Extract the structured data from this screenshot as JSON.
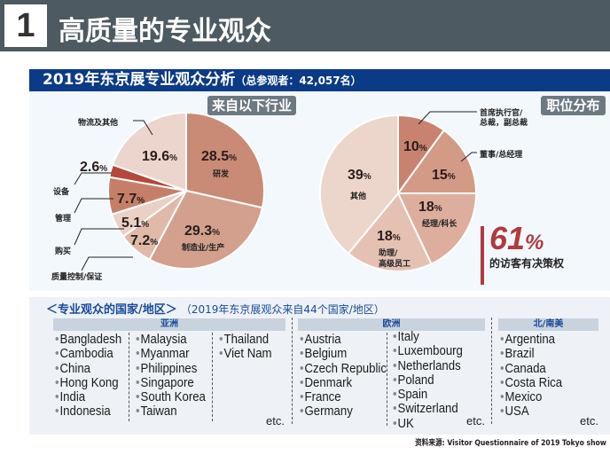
{
  "header": {
    "number": "1",
    "title": "高质量的专业观众"
  },
  "analysis": {
    "title": "2019年东京展专业观众分析",
    "subtitle": "（总参观者：42,057名）"
  },
  "industry_tag": "来自以下行业",
  "position_tag": "职位分布",
  "decision": {
    "value": "61",
    "unit": "%",
    "label": "的访客有决策权",
    "bar_color": "#b03a3e"
  },
  "chart_data": [
    {
      "type": "pie",
      "title": "来自以下行业",
      "start": "top",
      "direction": "clockwise",
      "slices": [
        {
          "label": "研发",
          "value": 28.5,
          "color": "#c98a76"
        },
        {
          "label": "制造业/生产",
          "value": 29.3,
          "color": "#d3a08d"
        },
        {
          "label": "质量控制/保证",
          "value": 7.2,
          "color": "#e0b9a9"
        },
        {
          "label": "购买",
          "value": 5.1,
          "color": "#ebd0c5"
        },
        {
          "label": "管理",
          "value": 7.7,
          "color": "#c57f69"
        },
        {
          "label": "设备",
          "value": 2.6,
          "color": "#b5473b"
        },
        {
          "label": "物流及其他",
          "value": 19.6,
          "color": "#ecd5cc"
        }
      ]
    },
    {
      "type": "pie",
      "title": "职位分布",
      "start": "top",
      "direction": "clockwise",
      "slices": [
        {
          "label": "首席执行官/总裁，副总裁",
          "value": 10,
          "color": "#c8826f"
        },
        {
          "label": "董事/总经理",
          "value": 15,
          "color": "#d39a86"
        },
        {
          "label": "经理/科长",
          "value": 18,
          "color": "#ddae9d"
        },
        {
          "label": "助理/高级员工",
          "value": 18,
          "color": "#e5c1b3"
        },
        {
          "label": "其他",
          "value": 39,
          "color": "#ecd5cb"
        }
      ]
    }
  ],
  "labels": {
    "pct": "%",
    "p1": [
      "28.5",
      "29.3",
      "7.2",
      "5.1",
      "7.7",
      "2.6",
      "19.6"
    ],
    "p2": [
      "10",
      "15",
      "18",
      "18",
      "39"
    ],
    "ceo1": "首席执行官/",
    "ceo2": "总裁，副总裁",
    "asst1": "助理/",
    "asst2": "高级员工"
  },
  "countries": {
    "title": "＜专业观众的国家/地区＞",
    "note": "（2019年东京展观众来自44个国家/地区）",
    "regions": [
      {
        "name": "亚洲",
        "columns": [
          [
            "Bangladesh",
            "Cambodia",
            "China",
            "Hong Kong",
            "India",
            "Indonesia"
          ],
          [
            "Malaysia",
            "Myanmar",
            "Philippines",
            "Singapore",
            "South Korea",
            "Taiwan"
          ],
          [
            "Thailand",
            "Viet Nam"
          ]
        ]
      },
      {
        "name": "欧洲",
        "columns": [
          [
            "Austria",
            "Belgium",
            "Czech Republic",
            "Denmark",
            "France",
            "Germany"
          ],
          [
            "Italy",
            "Luxembourg",
            "Netherlands",
            "Poland",
            "Spain",
            "Switzerland",
            "UK"
          ]
        ]
      },
      {
        "name": "北/南美",
        "columns": [
          [
            "Argentina",
            "Brazil",
            "Canada",
            "Costa Rica",
            "Mexico",
            "USA"
          ]
        ]
      }
    ],
    "etc": "etc."
  },
  "source": "资料来源: Visitor Questionnaire of 2019 Tokyo show"
}
